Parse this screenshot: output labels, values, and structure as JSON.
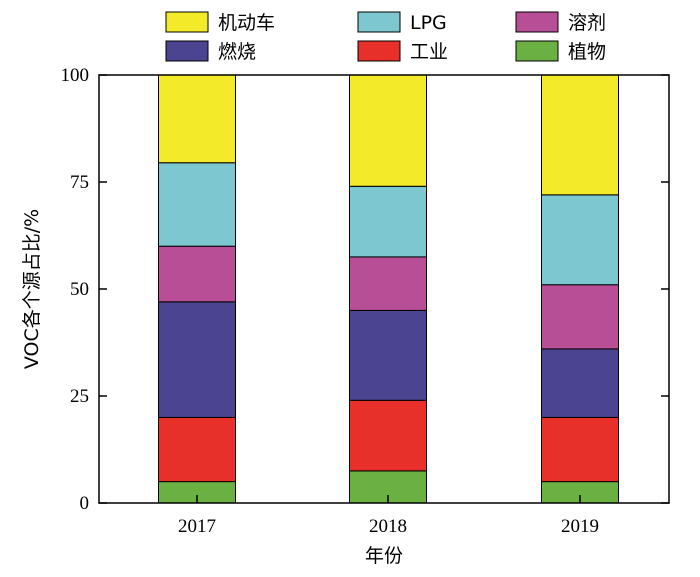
{
  "chart_data": {
    "type": "bar",
    "stacked": true,
    "categories": [
      "2017",
      "2018",
      "2019"
    ],
    "xlabel": "年份",
    "ylabel": "VOC各个源占比/%",
    "ylim": [
      0,
      100
    ],
    "yticks": [
      0,
      25,
      50,
      75,
      100
    ],
    "grid": false,
    "legend_position": "top",
    "series": [
      {
        "name": "植物",
        "color": "#6ab043",
        "values": [
          5,
          7.5,
          5
        ]
      },
      {
        "name": "工业",
        "color": "#e8302a",
        "values": [
          15,
          16.5,
          15
        ]
      },
      {
        "name": "燃烧",
        "color": "#4b4591",
        "values": [
          27,
          21,
          16
        ]
      },
      {
        "name": "溶剂",
        "color": "#b84f96",
        "values": [
          13,
          12.5,
          15
        ]
      },
      {
        "name": "LPG",
        "color": "#7dc8d0",
        "values": [
          19.5,
          16.5,
          21
        ]
      },
      {
        "name": "机动车",
        "color": "#f3ea2a",
        "values": [
          20.5,
          26,
          28
        ]
      }
    ],
    "legend_order": [
      "机动车",
      "LPG",
      "溶剂",
      "燃烧",
      "工业",
      "植物"
    ]
  }
}
